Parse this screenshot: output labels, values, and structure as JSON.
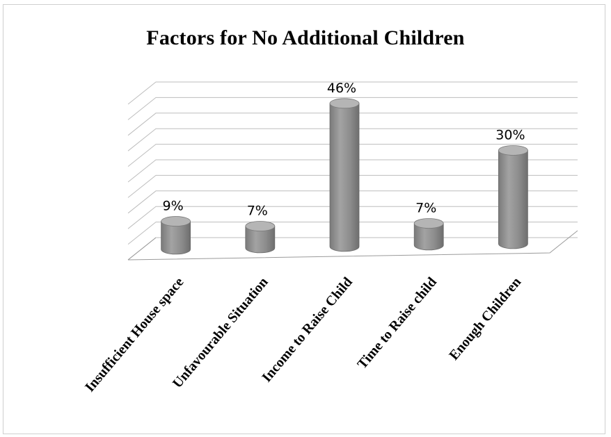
{
  "chart_data": {
    "type": "bar",
    "style": "3d-cylinder",
    "title": "Factors for No Additional Children",
    "categories": [
      "Insufficient House space",
      "Unfavourable Situation",
      "Income to Raise Child",
      "Time to Raise child",
      "Enough Children"
    ],
    "values": [
      9,
      7,
      46,
      7,
      30
    ],
    "data_labels": [
      "9%",
      "7%",
      "46%",
      "7%",
      "30%"
    ],
    "ylim": [
      0,
      50
    ],
    "grid": true,
    "legend": "none",
    "colors": {
      "bar": "#8f8f8f",
      "bar_top": "#b5b5b5",
      "grid": "#bdbdbd"
    }
  }
}
